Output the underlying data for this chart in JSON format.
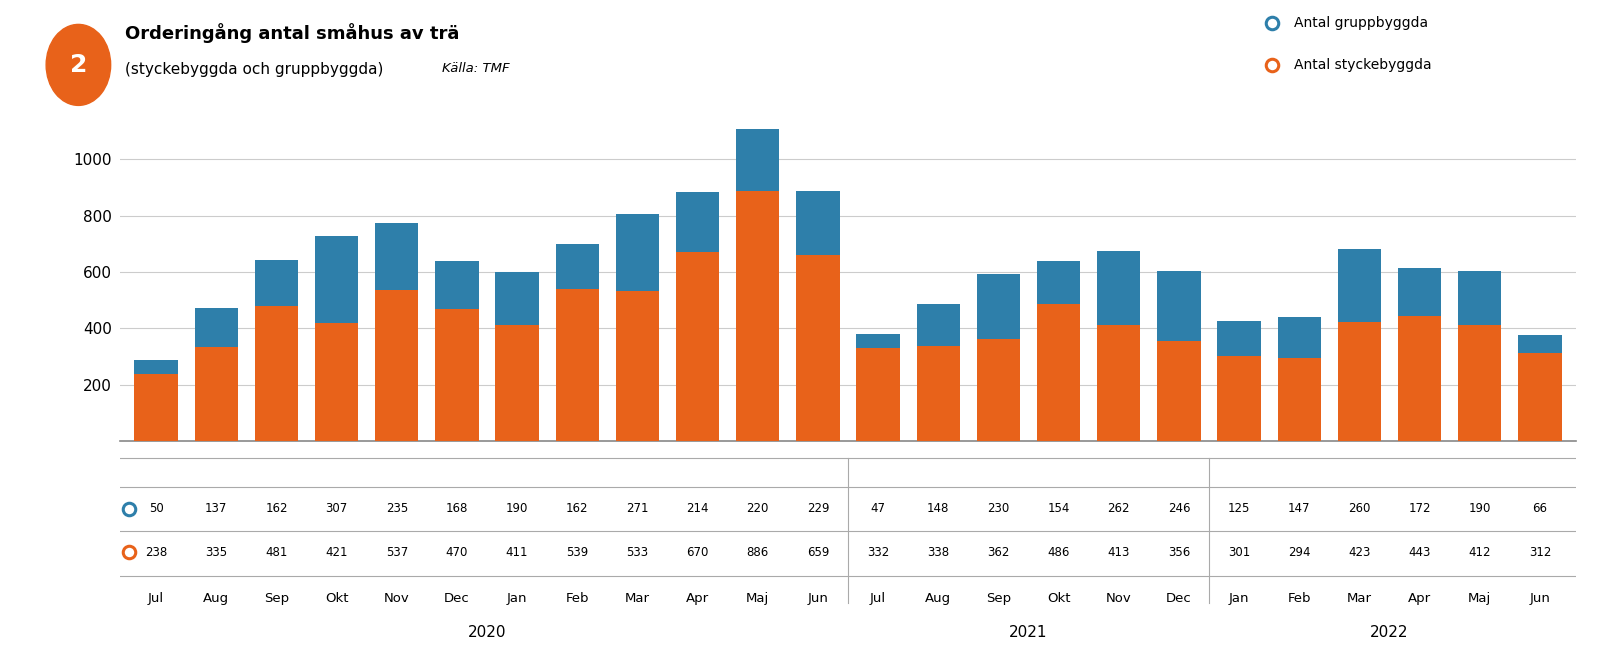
{
  "months": [
    "Jul",
    "Aug",
    "Sep",
    "Okt",
    "Nov",
    "Dec",
    "Jan",
    "Feb",
    "Mar",
    "Apr",
    "Maj",
    "Jun",
    "Jul",
    "Aug",
    "Sep",
    "Okt",
    "Nov",
    "Dec",
    "Jan",
    "Feb",
    "Mar",
    "Apr",
    "Maj",
    "Jun"
  ],
  "gruppbyggda": [
    50,
    137,
    162,
    307,
    235,
    168,
    190,
    162,
    271,
    214,
    220,
    229,
    47,
    148,
    230,
    154,
    262,
    246,
    125,
    147,
    260,
    172,
    190,
    66
  ],
  "styckebyggda": [
    238,
    335,
    481,
    421,
    537,
    470,
    411,
    539,
    533,
    670,
    886,
    659,
    332,
    338,
    362,
    486,
    413,
    356,
    301,
    294,
    423,
    443,
    412,
    312
  ],
  "color_gruppbyggda": "#2e7faa",
  "color_styckebyggda": "#e8621a",
  "title_bold": "Orderingång antal småhus av trä",
  "title_sub": "(styckebyggda och gruppbyggda)",
  "title_source": "Källa: TMF",
  "legend_gruppbyggda": "Antal gruppbyggda",
  "legend_styckebyggda": "Antal styckebyggda",
  "ylim": [
    0,
    1150
  ],
  "yticks": [
    200,
    400,
    600,
    800,
    1000
  ],
  "background_color": "#ffffff",
  "grid_color": "#cccccc",
  "circle_color": "#e8621a",
  "circle_number": "2",
  "year_groups": {
    "2020": [
      0,
      11
    ],
    "2021": [
      12,
      17
    ],
    "2022": [
      18,
      23
    ]
  }
}
